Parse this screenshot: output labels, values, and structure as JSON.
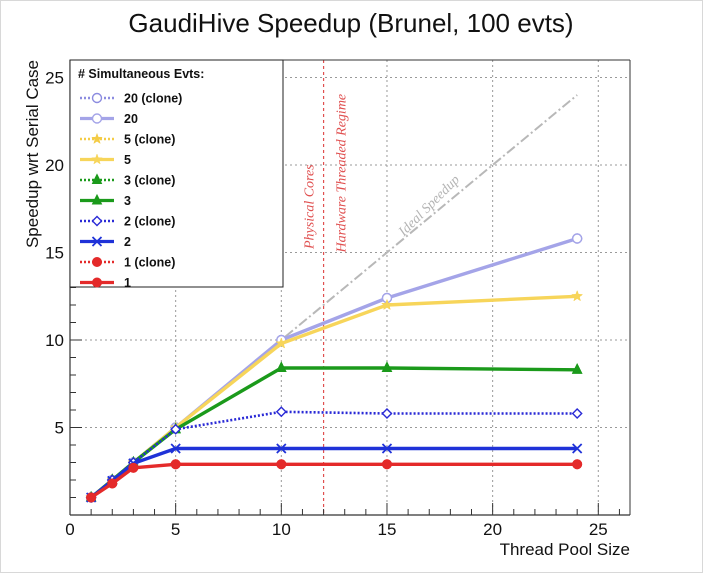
{
  "chart_data": {
    "type": "line",
    "title": "GaudiHive Speedup (Brunel, 100 evts)",
    "xlabel": "Thread Pool Size",
    "ylabel": "Speedup wrt Serial Case",
    "xlim": [
      0,
      26.5
    ],
    "ylim": [
      0,
      26
    ],
    "xticks": [
      0,
      5,
      10,
      15,
      20,
      25
    ],
    "yticks": [
      5,
      10,
      15,
      20,
      25
    ],
    "grid": true,
    "legend": {
      "title": "# Simultaneous Evts:",
      "placement": "top-left"
    },
    "series": [
      {
        "name": "20 (clone)",
        "color": "#8c8ce0",
        "style": "dotted",
        "marker": "open-circle",
        "x": [
          1,
          2,
          3,
          5,
          10,
          15,
          24
        ],
        "y": [
          1,
          2,
          3,
          5,
          10,
          12.4,
          15.8
        ]
      },
      {
        "name": "20",
        "color": "#a4a4e8",
        "style": "solid",
        "marker": "open-circle",
        "x": [
          1,
          2,
          3,
          5,
          10,
          15,
          24
        ],
        "y": [
          1,
          2,
          3,
          5,
          10,
          12.4,
          15.8
        ]
      },
      {
        "name": "5 (clone)",
        "color": "#f4cc46",
        "style": "dotted",
        "marker": "star",
        "x": [
          1,
          2,
          3,
          5,
          10,
          15,
          24
        ],
        "y": [
          1,
          2,
          3,
          5,
          9.8,
          12.0,
          12.5
        ]
      },
      {
        "name": "5",
        "color": "#f7d55a",
        "style": "solid",
        "marker": "star",
        "x": [
          1,
          2,
          3,
          5,
          10,
          15,
          24
        ],
        "y": [
          1,
          2,
          3,
          5,
          9.8,
          12.0,
          12.5
        ]
      },
      {
        "name": "3 (clone)",
        "color": "#1b9a1b",
        "style": "dotted",
        "marker": "triangle",
        "x": [
          1,
          2,
          3,
          5,
          10,
          15,
          24
        ],
        "y": [
          1,
          2,
          3,
          4.9,
          8.4,
          8.4,
          8.3
        ]
      },
      {
        "name": "3",
        "color": "#1b9a1b",
        "style": "solid",
        "marker": "triangle",
        "x": [
          1,
          2,
          3,
          5,
          10,
          15,
          24
        ],
        "y": [
          1,
          2,
          3,
          4.9,
          8.4,
          8.4,
          8.3
        ]
      },
      {
        "name": "2 (clone)",
        "color": "#2a2ad6",
        "style": "dotted",
        "marker": "open-diamond",
        "x": [
          1,
          2,
          3,
          5,
          10,
          15,
          24
        ],
        "y": [
          1,
          2,
          3,
          4.9,
          5.9,
          5.8,
          5.8
        ]
      },
      {
        "name": "2",
        "color": "#1f32d8",
        "style": "solid",
        "marker": "x",
        "x": [
          1,
          2,
          3,
          5,
          10,
          15,
          24
        ],
        "y": [
          1,
          1.95,
          2.95,
          3.8,
          3.8,
          3.8,
          3.8
        ]
      },
      {
        "name": "1 (clone)",
        "color": "#e42a2a",
        "style": "dotted",
        "marker": "filled-circle",
        "x": [
          1,
          2,
          3,
          5,
          10,
          15,
          24
        ],
        "y": [
          1,
          1.8,
          2.7,
          2.9,
          2.9,
          2.9,
          2.9
        ]
      },
      {
        "name": "1",
        "color": "#e42a2a",
        "style": "solid",
        "marker": "filled-circle",
        "x": [
          1,
          2,
          3,
          5,
          10,
          15,
          24
        ],
        "y": [
          1,
          1.8,
          2.7,
          2.9,
          2.9,
          2.9,
          2.9
        ]
      }
    ],
    "reference_line": {
      "label": "Ideal Speedup",
      "color": "#b8b8b8",
      "x": [
        1,
        24
      ],
      "y": [
        1,
        24
      ]
    },
    "vertical_line": {
      "x": 12,
      "color": "#e05050"
    },
    "annotations": [
      {
        "text": "Physical Cores",
        "color": "#e05050"
      },
      {
        "text": "Hardware Threaded Regime",
        "color": "#e05050"
      },
      {
        "text": "Ideal Speedup",
        "color": "#b4b4b4"
      }
    ]
  }
}
